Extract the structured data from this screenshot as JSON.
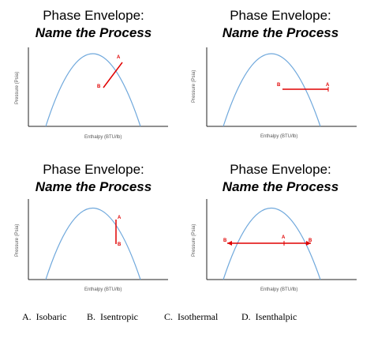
{
  "panels": [
    {
      "title": "Phase Envelope:",
      "subtitle": "Name the Process",
      "ylabel": "Pressure  (Psia)",
      "xlabel": "Enthalpy  (BTU/lb)",
      "start_label": "B",
      "end_label": "A",
      "process_color": "#e00000"
    },
    {
      "title": "Phase Envelope:",
      "subtitle": "Name the Process",
      "ylabel": "Pressure  (Psia)",
      "xlabel": "Enthalpy  (BTU/lb)",
      "start_label": "B",
      "end_label": "A",
      "process_color": "#e00000"
    },
    {
      "title": "Phase Envelope:",
      "subtitle": "Name the Process",
      "ylabel": "Pressure  (Psia)",
      "xlabel": "Enthalpy  (BTU/lb)",
      "start_label": "B",
      "end_label": "A",
      "process_color": "#e00000"
    },
    {
      "title": "Phase Envelope:",
      "subtitle": "Name the Process",
      "ylabel": "Pressure  (Psia)",
      "xlabel": "Enthalpy  (BTU/lb)",
      "start_label": "B",
      "mid_label": "A",
      "end_label": "B",
      "process_color": "#e00000"
    }
  ],
  "envelope_color": "#6fa8dc",
  "choices": [
    {
      "letter": "A.",
      "text": "Isobaric"
    },
    {
      "letter": "B.",
      "text": "Isentropic"
    },
    {
      "letter": "C.",
      "text": "Isothermal"
    },
    {
      "letter": "D.",
      "text": "Isenthalpic"
    }
  ]
}
